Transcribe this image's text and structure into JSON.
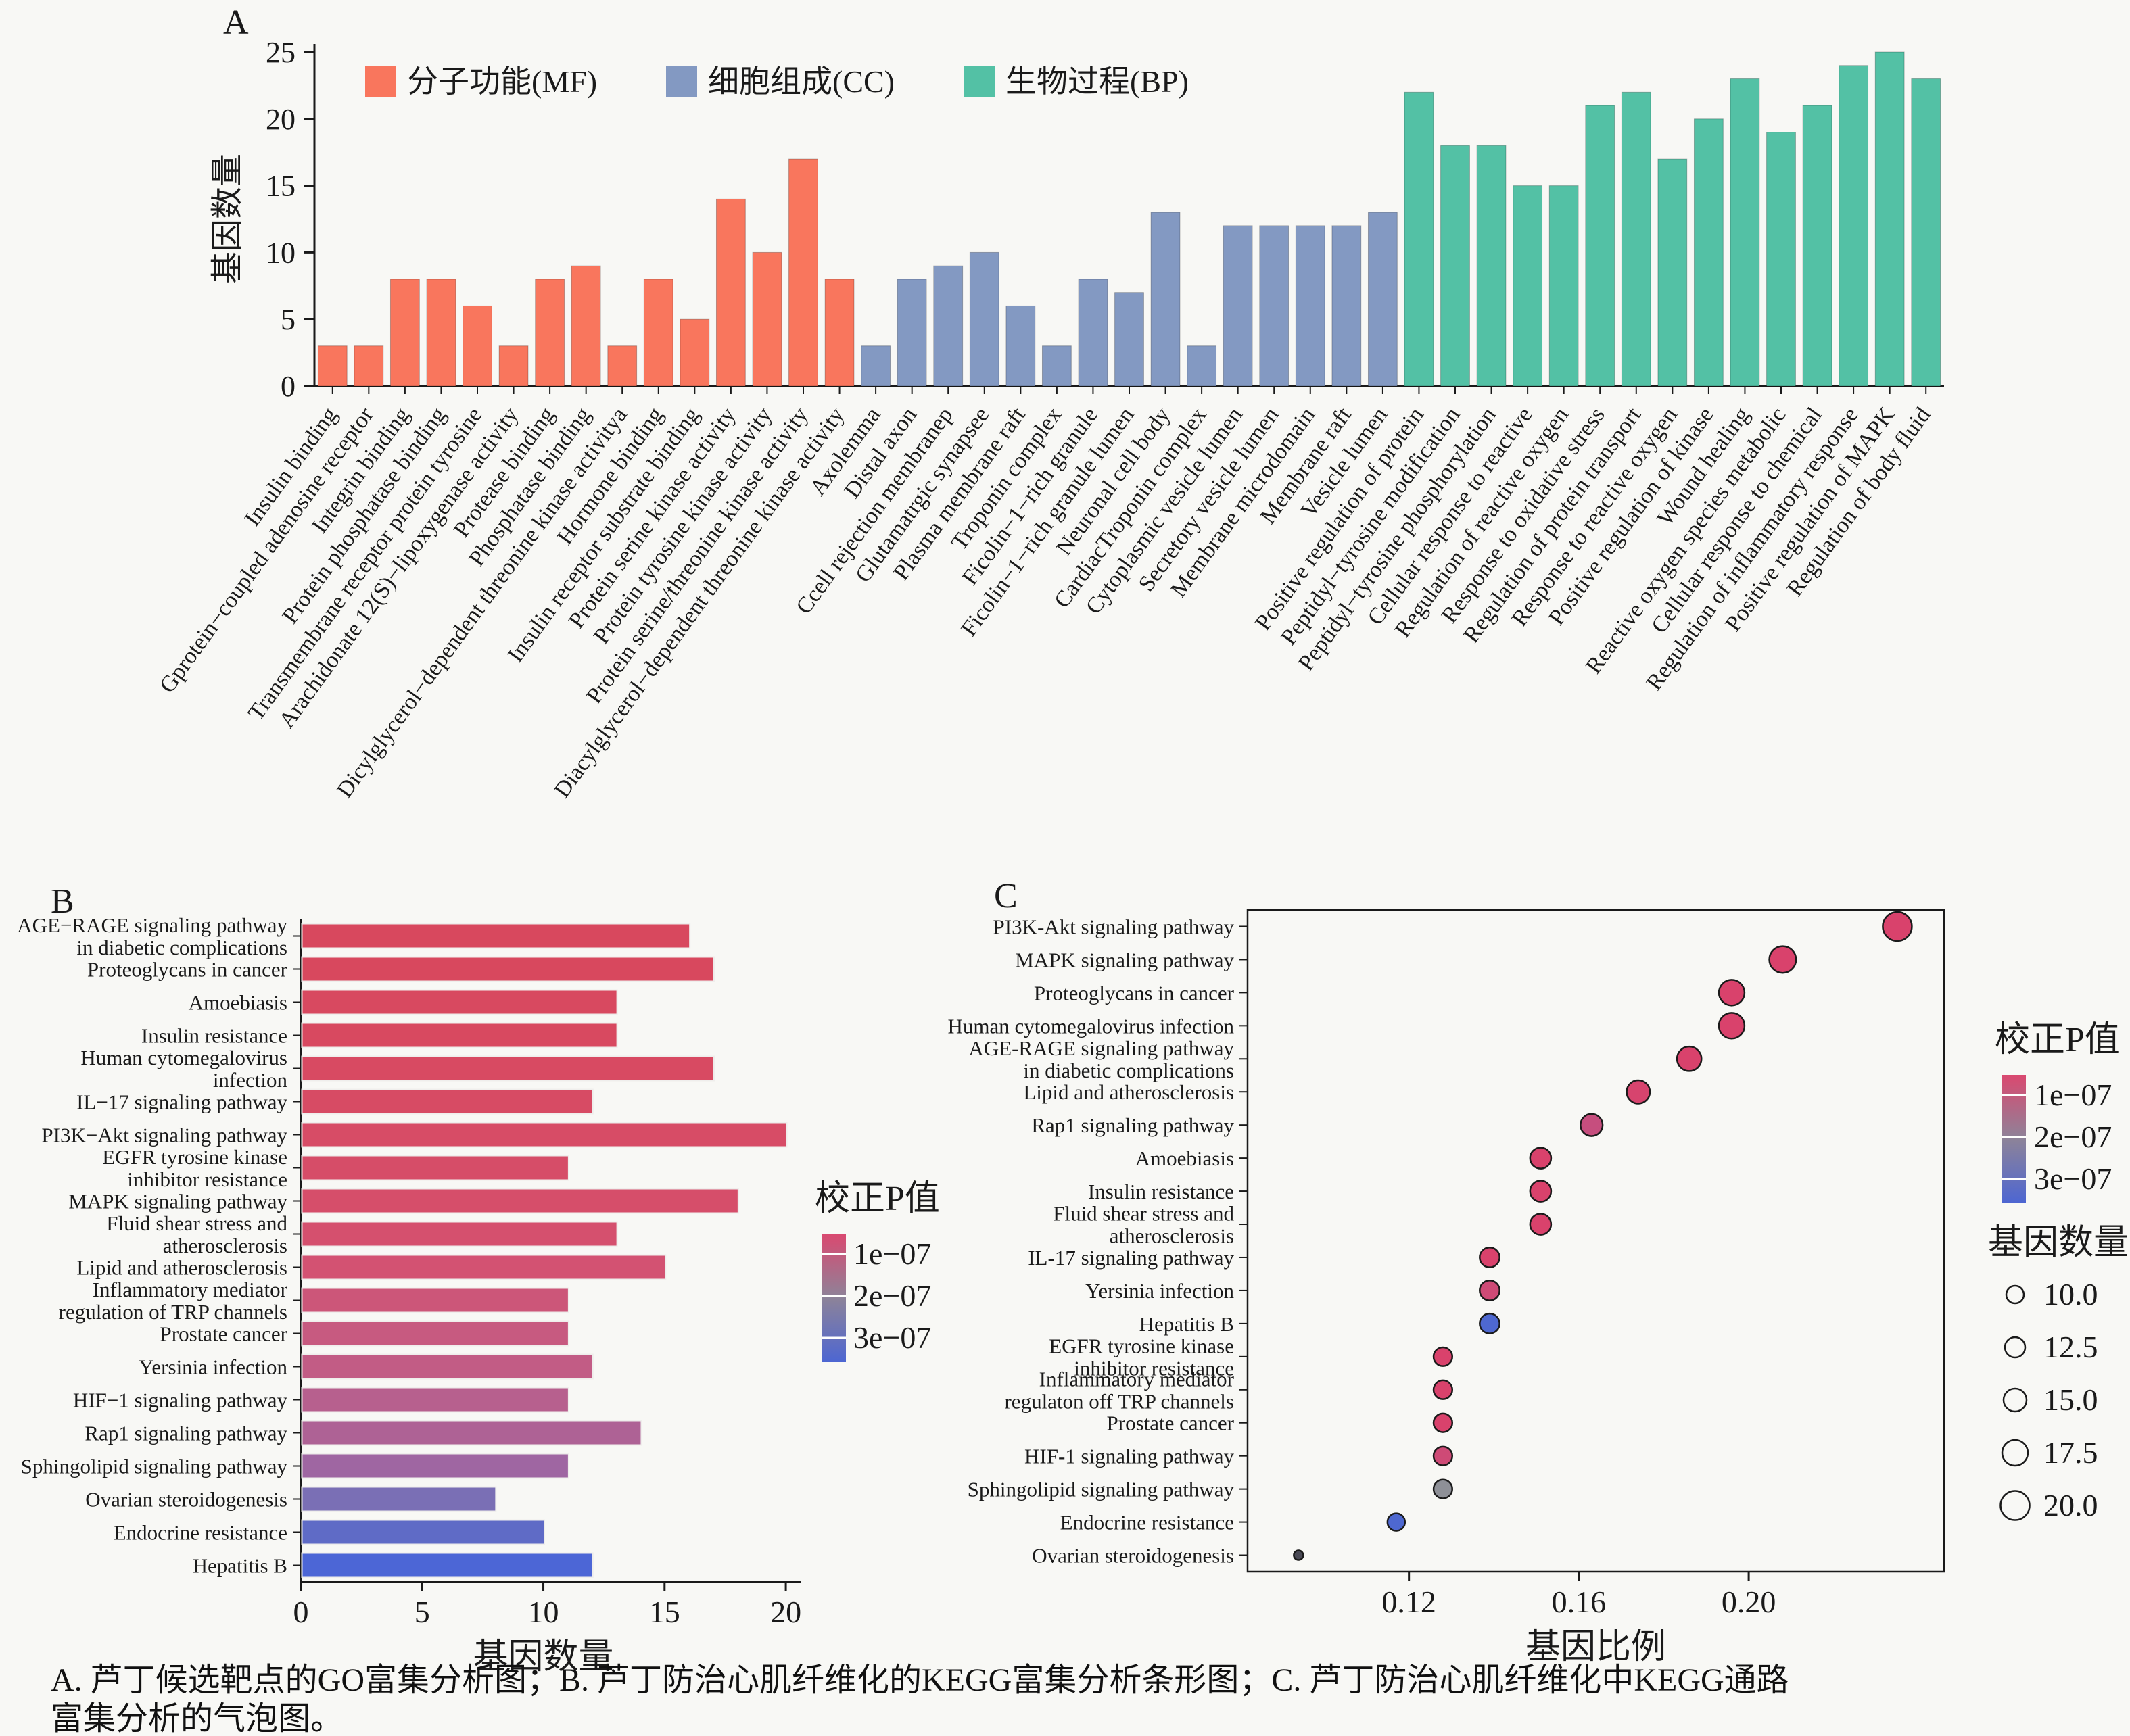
{
  "page": {
    "background": "#f8f8f5"
  },
  "caption": {
    "line1": "A. 芦丁候选靶点的GO富集分析图；B. 芦丁防治心肌纤维化的KEGG富集分析条形图；C. 芦丁防治心肌纤维化中KEGG通路",
    "line2": "富集分析的气泡图。"
  },
  "chart_data": [
    {
      "id": "A",
      "type": "bar",
      "panel_label": "A",
      "ylabel": "基因数量",
      "ylim": [
        0,
        25
      ],
      "yticks": [
        0,
        5,
        10,
        15,
        20,
        25
      ],
      "grid": false,
      "legend_position": "top-left-inside",
      "legend": [
        {
          "key": "MF",
          "label": "分子功能(MF)",
          "color": "#F9765D"
        },
        {
          "key": "CC",
          "label": "细胞组成(CC)",
          "color": "#8399C2"
        },
        {
          "key": "BP",
          "label": "生物过程(BP)",
          "color": "#53C1A5"
        }
      ],
      "bars": [
        {
          "label": "Insulin binding",
          "value": 3,
          "group": "MF"
        },
        {
          "label": "Gprotein−coupled adenosine receptor",
          "value": 3,
          "group": "MF"
        },
        {
          "label": "Integrin binding",
          "value": 8,
          "group": "MF"
        },
        {
          "label": "Protein phosphatase binding",
          "value": 8,
          "group": "MF"
        },
        {
          "label": "Transmembrane receptor protein tyrosine",
          "value": 6,
          "group": "MF"
        },
        {
          "label": "Arachidonate 12(S)−lipoxygenase activity",
          "value": 3,
          "group": "MF"
        },
        {
          "label": "Protease binding",
          "value": 8,
          "group": "MF"
        },
        {
          "label": "Phosphatase binding",
          "value": 9,
          "group": "MF"
        },
        {
          "label": "Dicylglycerol−dependent threonine kinase activitya",
          "value": 3,
          "group": "MF"
        },
        {
          "label": "Hormone binding",
          "value": 8,
          "group": "MF"
        },
        {
          "label": "Insulin receptor substrate binding",
          "value": 5,
          "group": "MF"
        },
        {
          "label": "Protein serine kinase activity",
          "value": 14,
          "group": "MF"
        },
        {
          "label": "Protein tyrosine kinase activity",
          "value": 10,
          "group": "MF"
        },
        {
          "label": "Protein serine/threonine kinase activity",
          "value": 17,
          "group": "MF"
        },
        {
          "label": "Diacylglycerol−dependent threonine kinase activity",
          "value": 8,
          "group": "MF"
        },
        {
          "label": "Axolemma",
          "value": 3,
          "group": "CC"
        },
        {
          "label": "Distal axon",
          "value": 8,
          "group": "CC"
        },
        {
          "label": "Ccell rejection membranep",
          "value": 9,
          "group": "CC"
        },
        {
          "label": "Glutamatrgic synapsee",
          "value": 10,
          "group": "CC"
        },
        {
          "label": "Plasma membrane raft",
          "value": 6,
          "group": "CC"
        },
        {
          "label": "Troponin complex",
          "value": 3,
          "group": "CC"
        },
        {
          "label": "Ficolin−1−rich granule",
          "value": 8,
          "group": "CC"
        },
        {
          "label": "Ficolin−1−rich granule lumen",
          "value": 7,
          "group": "CC"
        },
        {
          "label": "Neuronal cell body",
          "value": 13,
          "group": "CC"
        },
        {
          "label": "CardiacTroponin complex",
          "value": 3,
          "group": "CC"
        },
        {
          "label": "Cytoplasmic vesicle lumen",
          "value": 12,
          "group": "CC"
        },
        {
          "label": "Secretory vesicle lumen",
          "value": 12,
          "group": "CC"
        },
        {
          "label": "Membrane microdomain",
          "value": 12,
          "group": "CC"
        },
        {
          "label": "Membrane raft",
          "value": 12,
          "group": "CC"
        },
        {
          "label": "Vesicle lumen",
          "value": 13,
          "group": "CC"
        },
        {
          "label": "Positive regulation of protein",
          "value": 22,
          "group": "BP"
        },
        {
          "label": "Peptidyl−tyrosine modification",
          "value": 18,
          "group": "BP"
        },
        {
          "label": "Peptidyl−tyrosine phosphorylation",
          "value": 18,
          "group": "BP"
        },
        {
          "label": "Cellular response to reactive",
          "value": 15,
          "group": "BP"
        },
        {
          "label": "Regulation of reactive oxygen",
          "value": 15,
          "group": "BP"
        },
        {
          "label": "Response to oxidative stress",
          "value": 21,
          "group": "BP"
        },
        {
          "label": "Regulation of protein transport",
          "value": 22,
          "group": "BP"
        },
        {
          "label": "Response to reactive oxygen",
          "value": 17,
          "group": "BP"
        },
        {
          "label": "Positive regulation of kinase",
          "value": 20,
          "group": "BP"
        },
        {
          "label": "Wound healing",
          "value": 23,
          "group": "BP"
        },
        {
          "label": "Reactive oxygen species metabolic",
          "value": 19,
          "group": "BP"
        },
        {
          "label": "Cellular response to chemical",
          "value": 21,
          "group": "BP"
        },
        {
          "label": "Regulation of inflammatory response",
          "value": 24,
          "group": "BP"
        },
        {
          "label": "Positive regulation of MAPK",
          "value": 25,
          "group": "BP"
        },
        {
          "label": "Regulation of body fluid",
          "value": 23,
          "group": "BP"
        }
      ]
    },
    {
      "id": "B",
      "type": "hbar",
      "panel_label": "B",
      "xlabel": "基因数量",
      "xlim": [
        0,
        20.5
      ],
      "xticks": [
        0,
        5,
        10,
        15,
        20
      ],
      "p_legend": {
        "title": "校正P值",
        "ticks": [
          "1e−07",
          "2e−07",
          "3e−07"
        ],
        "gradient": [
          "#DA4970",
          "#8D8399",
          "#4D66D2"
        ]
      },
      "bars": [
        {
          "label_lines": [
            "AGE−RAGE signaling pathway",
            "in diabetic complications"
          ],
          "value": 16,
          "color": "#D8485E"
        },
        {
          "label_lines": [
            "Proteoglycans in cancer"
          ],
          "value": 17,
          "color": "#D8485E"
        },
        {
          "label_lines": [
            "Amoebiasis"
          ],
          "value": 13,
          "color": "#D84960"
        },
        {
          "label_lines": [
            "Insulin resistance"
          ],
          "value": 13,
          "color": "#D84960"
        },
        {
          "label_lines": [
            "Human cytomegalovirus",
            "infection"
          ],
          "value": 17,
          "color": "#D84A62"
        },
        {
          "label_lines": [
            "IL−17 signaling pathway"
          ],
          "value": 12,
          "color": "#D74B64"
        },
        {
          "label_lines": [
            "PI3K−Akt signaling pathway"
          ],
          "value": 20,
          "color": "#D74C66"
        },
        {
          "label_lines": [
            "EGFR tyrosine kinase",
            "inhibitor resistance"
          ],
          "value": 11,
          "color": "#D64D68"
        },
        {
          "label_lines": [
            "MAPK signaling pathway"
          ],
          "value": 18,
          "color": "#D64E6A"
        },
        {
          "label_lines": [
            "Fluid shear stress and",
            "atherosclerosis"
          ],
          "value": 13,
          "color": "#D5506E"
        },
        {
          "label_lines": [
            "Lipid and atherosclerosis"
          ],
          "value": 15,
          "color": "#D35272"
        },
        {
          "label_lines": [
            "Inflammatory mediator",
            "regulation of TRP channels"
          ],
          "value": 11,
          "color": "#CC5679"
        },
        {
          "label_lines": [
            "Prostate cancer"
          ],
          "value": 11,
          "color": "#C75A80"
        },
        {
          "label_lines": [
            "Yersinia infection"
          ],
          "value": 12,
          "color": "#C25C85"
        },
        {
          "label_lines": [
            "HIF−1 signaling pathway"
          ],
          "value": 11,
          "color": "#B7608E"
        },
        {
          "label_lines": [
            "Rap1 signaling pathway"
          ],
          "value": 14,
          "color": "#AE6295"
        },
        {
          "label_lines": [
            "Sphingolipid signaling pathway"
          ],
          "value": 11,
          "color": "#9F66A2"
        },
        {
          "label_lines": [
            "Ovarian steroidogenesis"
          ],
          "value": 8,
          "color": "#7A6FB5"
        },
        {
          "label_lines": [
            "Endocrine resistance"
          ],
          "value": 10,
          "color": "#5F6BC6"
        },
        {
          "label_lines": [
            "Hepatitis B"
          ],
          "value": 12,
          "color": "#4C66D6"
        }
      ]
    },
    {
      "id": "C",
      "type": "scatter",
      "panel_label": "C",
      "xlabel": "基因比例",
      "xlim": [
        0.082,
        0.246
      ],
      "xticks": [
        0.12,
        0.16,
        0.2
      ],
      "p_legend": {
        "title": "校正P值",
        "ticks": [
          "1e−07",
          "2e−07",
          "3e−07"
        ],
        "gradient": [
          "#DA4970",
          "#8D8399",
          "#4D66D2"
        ]
      },
      "size_legend": {
        "title": "基因数量",
        "values": [
          "10.0",
          "12.5",
          "15.0",
          "17.5",
          "20.0"
        ]
      },
      "points": [
        {
          "label_lines": [
            "PI3K-Akt signaling pathway"
          ],
          "x": 0.235,
          "count": 20,
          "color": "#D9426C"
        },
        {
          "label_lines": [
            "MAPK signaling pathway"
          ],
          "x": 0.208,
          "count": 18,
          "color": "#D9426C"
        },
        {
          "label_lines": [
            "Proteoglycans in cancer"
          ],
          "x": 0.196,
          "count": 17,
          "color": "#D9426C"
        },
        {
          "label_lines": [
            "Human cytomegalovirus infection"
          ],
          "x": 0.196,
          "count": 17,
          "color": "#D9426C"
        },
        {
          "label_lines": [
            "AGE-RAGE signaling pathway",
            "in diabetic complications"
          ],
          "x": 0.186,
          "count": 16,
          "color": "#D9426C"
        },
        {
          "label_lines": [
            "Lipid and atherosclerosis"
          ],
          "x": 0.174,
          "count": 15,
          "color": "#D7446E"
        },
        {
          "label_lines": [
            "Rap1 signaling pathway"
          ],
          "x": 0.163,
          "count": 14,
          "color": "#C64E7E"
        },
        {
          "label_lines": [
            "Amoebiasis"
          ],
          "x": 0.151,
          "count": 13,
          "color": "#D9426C"
        },
        {
          "label_lines": [
            "Insulin resistance"
          ],
          "x": 0.151,
          "count": 13,
          "color": "#D9426C"
        },
        {
          "label_lines": [
            "Fluid shear stress and",
            "atherosclerosis"
          ],
          "x": 0.151,
          "count": 13,
          "color": "#D9426C"
        },
        {
          "label_lines": [
            "IL-17 signaling pathway"
          ],
          "x": 0.139,
          "count": 12,
          "color": "#D9426C"
        },
        {
          "label_lines": [
            "Yersinia infection"
          ],
          "x": 0.139,
          "count": 12,
          "color": "#CE4A76"
        },
        {
          "label_lines": [
            "Hepatitis B"
          ],
          "x": 0.139,
          "count": 12,
          "color": "#4E68D0"
        },
        {
          "label_lines": [
            "EGFR tyrosine kinase",
            "inhibitor resistance"
          ],
          "x": 0.128,
          "count": 11,
          "color": "#D9426C"
        },
        {
          "label_lines": [
            "Inflammatory mediator",
            "regulaton off TRP channels"
          ],
          "x": 0.128,
          "count": 11,
          "color": "#D9426C"
        },
        {
          "label_lines": [
            "Prostate cancer"
          ],
          "x": 0.128,
          "count": 11,
          "color": "#D9426C"
        },
        {
          "label_lines": [
            "HIF-1 signaling pathway"
          ],
          "x": 0.128,
          "count": 11,
          "color": "#CE4A76"
        },
        {
          "label_lines": [
            "Sphingolipid signaling pathway"
          ],
          "x": 0.128,
          "count": 11,
          "color": "#8E9097"
        },
        {
          "label_lines": [
            "Endocrine resistance"
          ],
          "x": 0.117,
          "count": 10,
          "color": "#4E68D0"
        },
        {
          "label_lines": [
            "Ovarian steroidogenesis"
          ],
          "x": 0.094,
          "count": 8,
          "color": "#4A4A55"
        }
      ]
    }
  ]
}
